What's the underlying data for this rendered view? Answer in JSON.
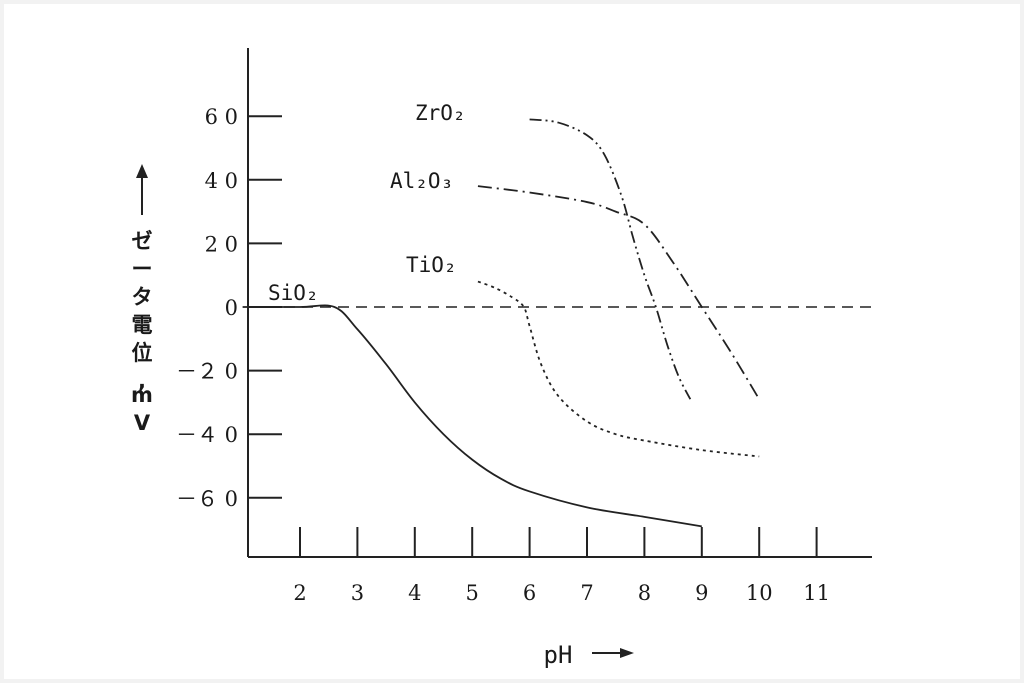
{
  "chart_data": {
    "type": "line",
    "xlabel": "pH",
    "ylabel": "ゼータ電位, mV",
    "xlim": [
      1,
      12
    ],
    "ylim": [
      -80,
      80
    ],
    "x_ticks": [
      2,
      3,
      4,
      5,
      6,
      7,
      8,
      9,
      10,
      11
    ],
    "y_ticks": [
      60,
      40,
      20,
      0,
      -20,
      -40,
      -60
    ],
    "y_tick_labels": [
      "6 0",
      "4 0",
      "2 0",
      "0",
      "－２ 0",
      "－４ 0",
      "－６ 0"
    ],
    "zero_line": "dashed",
    "series": [
      {
        "name": "ZrO₂",
        "style": "dash-dot-dot",
        "x": [
          6.0,
          6.5,
          7.0,
          7.3,
          7.6,
          7.8,
          8.0,
          8.2,
          8.4,
          8.6,
          8.8
        ],
        "y": [
          59,
          58,
          54,
          48,
          35,
          22,
          10,
          0,
          -12,
          -22,
          -29
        ]
      },
      {
        "name": "Al₂O₃",
        "style": "dash-dot",
        "x": [
          5.1,
          6.0,
          7.0,
          7.5,
          8.0,
          8.5,
          9.0,
          9.5,
          10.0
        ],
        "y": [
          38,
          36,
          33,
          30,
          26,
          14,
          0,
          -14,
          -29
        ]
      },
      {
        "name": "TiO₂",
        "style": "dotted",
        "x": [
          5.1,
          5.4,
          5.7,
          5.9,
          6.0,
          6.2,
          6.5,
          7.0,
          7.5,
          8.0,
          9.0,
          10.0
        ],
        "y": [
          8,
          6,
          3,
          0,
          -6,
          -18,
          -28,
          -36,
          -40,
          -42,
          -45,
          -47
        ]
      },
      {
        "name": "SiO₂",
        "style": "solid",
        "x": [
          1.0,
          2.0,
          2.6,
          3.0,
          3.5,
          4.0,
          4.5,
          5.0,
          5.5,
          6.0,
          7.0,
          8.0,
          9.0
        ],
        "y": [
          0,
          0,
          0,
          -7,
          -18,
          -30,
          -40,
          -48,
          -54,
          -58,
          -63,
          -66,
          -69
        ]
      }
    ],
    "line_color": "#222222",
    "background": "#ffffff"
  }
}
